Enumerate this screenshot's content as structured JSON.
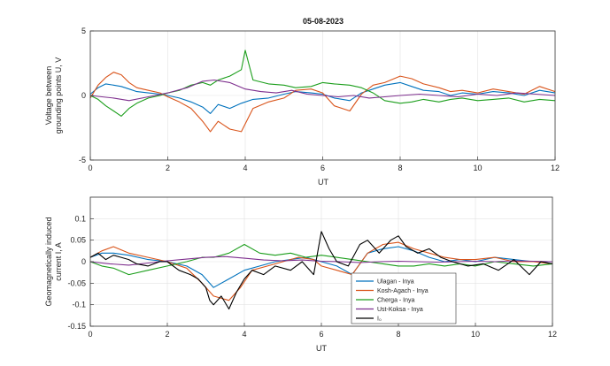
{
  "chart_data": [
    {
      "type": "line",
      "title": "05-08-2023",
      "xlabel": "UT",
      "ylabel_lines": [
        "Voltage between",
        "grounding points U, V"
      ],
      "xlim": [
        0,
        12
      ],
      "ylim": [
        -5,
        5
      ],
      "xticks": [
        0,
        2,
        4,
        6,
        8,
        10,
        12
      ],
      "xtick_labels": [
        "0",
        "2",
        "4",
        "6",
        "8",
        "10",
        "12"
      ],
      "yticks": [
        -5,
        0,
        5
      ],
      "ytick_labels": [
        "-5",
        "0",
        "5"
      ],
      "grid": true,
      "series": [
        {
          "color": "#0072BD",
          "x": [
            0,
            0.2,
            0.4,
            0.6,
            0.8,
            1.0,
            1.2,
            1.5,
            1.8,
            2.0,
            2.3,
            2.6,
            2.9,
            3.1,
            3.3,
            3.6,
            3.9,
            4.2,
            4.6,
            5.0,
            5.3,
            5.7,
            6.0,
            6.3,
            6.7,
            7.0,
            7.3,
            7.6,
            8.0,
            8.3,
            8.6,
            9.0,
            9.3,
            9.6,
            10.0,
            10.4,
            10.8,
            11.2,
            11.6,
            12.0
          ],
          "y": [
            0.1,
            0.6,
            0.9,
            0.8,
            0.7,
            0.5,
            0.3,
            0.2,
            0.1,
            0.0,
            -0.2,
            -0.5,
            -0.9,
            -1.4,
            -0.7,
            -1.0,
            -0.6,
            -0.3,
            -0.2,
            0.1,
            0.3,
            0.2,
            0.1,
            -0.2,
            -0.4,
            0.2,
            0.5,
            0.8,
            1.0,
            0.7,
            0.4,
            0.3,
            0.0,
            0.2,
            0.1,
            0.3,
            0.2,
            0.0,
            0.4,
            0.2
          ]
        },
        {
          "color": "#D95319",
          "x": [
            0,
            0.2,
            0.4,
            0.6,
            0.8,
            1.0,
            1.2,
            1.5,
            1.8,
            2.0,
            2.3,
            2.6,
            2.9,
            3.1,
            3.3,
            3.6,
            3.9,
            4.2,
            4.6,
            5.0,
            5.3,
            5.7,
            6.0,
            6.3,
            6.7,
            7.0,
            7.3,
            7.6,
            8.0,
            8.3,
            8.6,
            9.0,
            9.3,
            9.6,
            10.0,
            10.4,
            10.8,
            11.2,
            11.6,
            12.0
          ],
          "y": [
            -0.2,
            0.8,
            1.4,
            1.8,
            1.6,
            1.0,
            0.6,
            0.4,
            0.2,
            -0.1,
            -0.5,
            -1.0,
            -2.0,
            -2.8,
            -2.0,
            -2.6,
            -2.8,
            -1.0,
            -0.5,
            -0.2,
            0.4,
            0.5,
            0.2,
            -0.8,
            -1.2,
            0.1,
            0.8,
            1.0,
            1.5,
            1.3,
            0.9,
            0.6,
            0.3,
            0.4,
            0.2,
            0.5,
            0.3,
            0.1,
            0.7,
            0.3
          ]
        },
        {
          "color": "#1B9E1B",
          "x": [
            0,
            0.2,
            0.4,
            0.6,
            0.8,
            1.0,
            1.2,
            1.5,
            1.8,
            2.0,
            2.3,
            2.6,
            2.9,
            3.1,
            3.3,
            3.6,
            3.9,
            4.0,
            4.2,
            4.6,
            5.0,
            5.3,
            5.7,
            6.0,
            6.3,
            6.7,
            7.0,
            7.3,
            7.6,
            8.0,
            8.3,
            8.6,
            9.0,
            9.3,
            9.6,
            10.0,
            10.4,
            10.8,
            11.2,
            11.6,
            12.0
          ],
          "y": [
            0.0,
            -0.3,
            -0.8,
            -1.2,
            -1.6,
            -1.0,
            -0.6,
            -0.2,
            0.0,
            0.2,
            0.4,
            0.8,
            1.0,
            0.8,
            1.2,
            1.5,
            2.0,
            3.5,
            1.2,
            0.9,
            0.8,
            0.6,
            0.7,
            1.0,
            0.9,
            0.8,
            0.6,
            0.2,
            -0.4,
            -0.6,
            -0.5,
            -0.3,
            -0.5,
            -0.3,
            -0.2,
            -0.4,
            -0.3,
            -0.2,
            -0.5,
            -0.3,
            -0.4
          ]
        },
        {
          "color": "#7E2F8E",
          "x": [
            0,
            0.3,
            0.6,
            1.0,
            1.5,
            2.0,
            2.5,
            2.9,
            3.2,
            3.6,
            4.0,
            4.4,
            4.8,
            5.2,
            5.6,
            6.0,
            6.4,
            6.8,
            7.2,
            7.6,
            8.0,
            8.5,
            9.0,
            9.5,
            10.0,
            10.5,
            11.0,
            11.5,
            12.0
          ],
          "y": [
            0.0,
            -0.1,
            -0.2,
            -0.4,
            -0.1,
            0.2,
            0.6,
            1.1,
            1.2,
            1.0,
            0.5,
            0.3,
            0.2,
            0.4,
            0.1,
            0.0,
            -0.1,
            0.0,
            -0.2,
            -0.1,
            0.0,
            0.1,
            0.0,
            -0.1,
            0.1,
            0.0,
            0.2,
            0.1,
            0.0
          ]
        }
      ]
    },
    {
      "type": "line",
      "title": "",
      "xlabel": "UT",
      "ylabel_lines": [
        "Geomagnetically induced",
        "current I, A"
      ],
      "xlim": [
        0,
        12
      ],
      "ylim": [
        -0.15,
        0.15
      ],
      "xticks": [
        0,
        2,
        4,
        6,
        8,
        10,
        12
      ],
      "xtick_labels": [
        "0",
        "2",
        "4",
        "6",
        "8",
        "10",
        "12"
      ],
      "yticks": [
        -0.15,
        -0.1,
        -0.05,
        0,
        0.05,
        0.1
      ],
      "ytick_labels": [
        "-0.15",
        "-0.1",
        "-0.05",
        "0",
        "0.05",
        "0.1"
      ],
      "grid": true,
      "legend_position": "bottom-right",
      "series": [
        {
          "name": "Ulagan - Inya",
          "color": "#0072BD",
          "x": [
            0,
            0.3,
            0.6,
            1.0,
            1.5,
            2.0,
            2.5,
            2.9,
            3.2,
            3.6,
            4.0,
            4.4,
            4.8,
            5.2,
            5.6,
            6.0,
            6.4,
            6.8,
            7.2,
            7.6,
            8.0,
            8.4,
            8.8,
            9.2,
            9.6,
            10.0,
            10.5,
            11.0,
            11.5,
            12.0
          ],
          "y": [
            0.01,
            0.02,
            0.02,
            0.015,
            0.005,
            0.0,
            -0.01,
            -0.03,
            -0.06,
            -0.04,
            -0.02,
            -0.01,
            0.0,
            0.005,
            0.01,
            0.0,
            -0.01,
            -0.03,
            0.02,
            0.03,
            0.035,
            0.025,
            0.01,
            0.0,
            0.005,
            0.0,
            0.01,
            0.005,
            0.0,
            0.0
          ]
        },
        {
          "name": "Kosh-Agach - Inya",
          "color": "#D95319",
          "x": [
            0,
            0.3,
            0.6,
            1.0,
            1.5,
            2.0,
            2.5,
            2.9,
            3.2,
            3.6,
            3.9,
            4.2,
            4.6,
            5.0,
            5.4,
            5.8,
            6.0,
            6.4,
            6.8,
            7.2,
            7.6,
            8.0,
            8.4,
            8.8,
            9.2,
            9.6,
            10.0,
            10.5,
            11.0,
            11.5,
            12.0
          ],
          "y": [
            0.01,
            0.025,
            0.035,
            0.02,
            0.01,
            0.0,
            -0.015,
            -0.05,
            -0.08,
            -0.09,
            -0.06,
            -0.02,
            -0.01,
            0.0,
            0.01,
            0.005,
            -0.01,
            -0.02,
            -0.03,
            0.02,
            0.04,
            0.045,
            0.03,
            0.02,
            0.01,
            0.005,
            0.005,
            0.01,
            0.0,
            0.0,
            -0.005
          ]
        },
        {
          "name": "Cherga - Inya",
          "color": "#1B9E1B",
          "x": [
            0,
            0.3,
            0.6,
            1.0,
            1.5,
            2.0,
            2.5,
            2.9,
            3.2,
            3.6,
            4.0,
            4.4,
            4.8,
            5.2,
            5.6,
            6.0,
            6.4,
            6.8,
            7.2,
            7.6,
            8.0,
            8.4,
            8.8,
            9.2,
            9.6,
            10.0,
            10.5,
            11.0,
            11.5,
            12.0
          ],
          "y": [
            0.0,
            -0.01,
            -0.015,
            -0.03,
            -0.02,
            -0.01,
            0.0,
            0.01,
            0.01,
            0.02,
            0.04,
            0.02,
            0.015,
            0.02,
            0.01,
            0.015,
            0.01,
            0.005,
            0.0,
            -0.005,
            -0.01,
            -0.01,
            -0.005,
            -0.01,
            -0.005,
            -0.01,
            0.0,
            -0.005,
            -0.01,
            -0.005
          ]
        },
        {
          "name": "Ust-Koksa - Inya",
          "color": "#7E2F8E",
          "x": [
            0,
            0.5,
            1.0,
            1.5,
            2.0,
            2.5,
            3.0,
            3.5,
            4.0,
            4.5,
            5.0,
            5.5,
            6.0,
            6.5,
            7.0,
            7.5,
            8.0,
            8.5,
            9.0,
            9.5,
            10.0,
            10.5,
            11.0,
            11.5,
            12.0
          ],
          "y": [
            0.0,
            -0.005,
            -0.008,
            -0.003,
            0.002,
            0.006,
            0.01,
            0.012,
            0.008,
            0.004,
            0.002,
            0.004,
            0.001,
            0.0,
            -0.002,
            0.0,
            0.001,
            0.0,
            -0.001,
            0.0,
            0.001,
            0.0,
            0.002,
            0.001,
            0.0
          ]
        },
        {
          "name": "I₀",
          "color": "#000000",
          "x": [
            0,
            0.2,
            0.4,
            0.6,
            0.8,
            1.0,
            1.2,
            1.5,
            1.8,
            2.0,
            2.3,
            2.6,
            2.8,
            3.0,
            3.1,
            3.2,
            3.4,
            3.6,
            3.8,
            4.0,
            4.2,
            4.5,
            4.8,
            5.2,
            5.5,
            5.8,
            6.0,
            6.2,
            6.4,
            6.7,
            7.0,
            7.2,
            7.5,
            7.8,
            8.0,
            8.2,
            8.5,
            8.8,
            9.1,
            9.4,
            9.8,
            10.2,
            10.6,
            11.0,
            11.4,
            11.7,
            12.0
          ],
          "y": [
            0.01,
            0.02,
            0.005,
            0.015,
            0.01,
            0.005,
            -0.005,
            -0.01,
            0.0,
            0.0,
            -0.02,
            -0.03,
            -0.04,
            -0.06,
            -0.09,
            -0.1,
            -0.08,
            -0.11,
            -0.07,
            -0.04,
            -0.02,
            -0.03,
            -0.01,
            -0.02,
            0.0,
            -0.03,
            0.07,
            0.03,
            0.0,
            -0.01,
            0.04,
            0.05,
            0.02,
            0.05,
            0.06,
            0.035,
            0.02,
            0.03,
            0.01,
            0.0,
            -0.01,
            -0.005,
            -0.02,
            0.005,
            -0.03,
            0.0,
            -0.005
          ]
        }
      ]
    }
  ]
}
